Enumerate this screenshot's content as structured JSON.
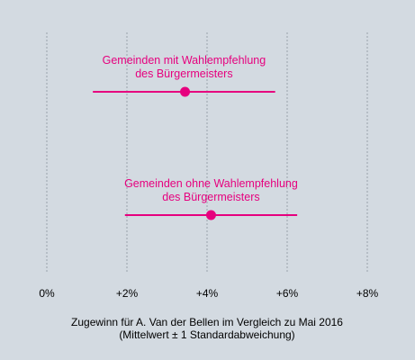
{
  "chart_data": {
    "type": "dot-errorbar",
    "xlabel_line1": "Zugewinn für A. Van der Bellen im Vergleich zu Mai 2016",
    "xlabel_line2": "(Mittelwert ± 1 Standardabweichung)",
    "xlim": [
      0,
      8
    ],
    "ticks": [
      {
        "value": 0,
        "label": "0%"
      },
      {
        "value": 2,
        "label": "+2%"
      },
      {
        "value": 4,
        "label": "+4%"
      },
      {
        "value": 6,
        "label": "+6%"
      },
      {
        "value": 8,
        "label": "+8%"
      }
    ],
    "grid": true,
    "color": "#e6007e",
    "groups": [
      {
        "label_line1": "Gemeinden mit Wahlempfehlung",
        "label_line2": "des Bürgermeisters",
        "mean": 3.45,
        "low": 1.15,
        "high": 5.7
      },
      {
        "label_line1": "Gemeinden ohne Wahlempfehlung",
        "label_line2": "des Bürgermeisters",
        "mean": 4.1,
        "low": 1.95,
        "high": 6.25
      }
    ]
  }
}
